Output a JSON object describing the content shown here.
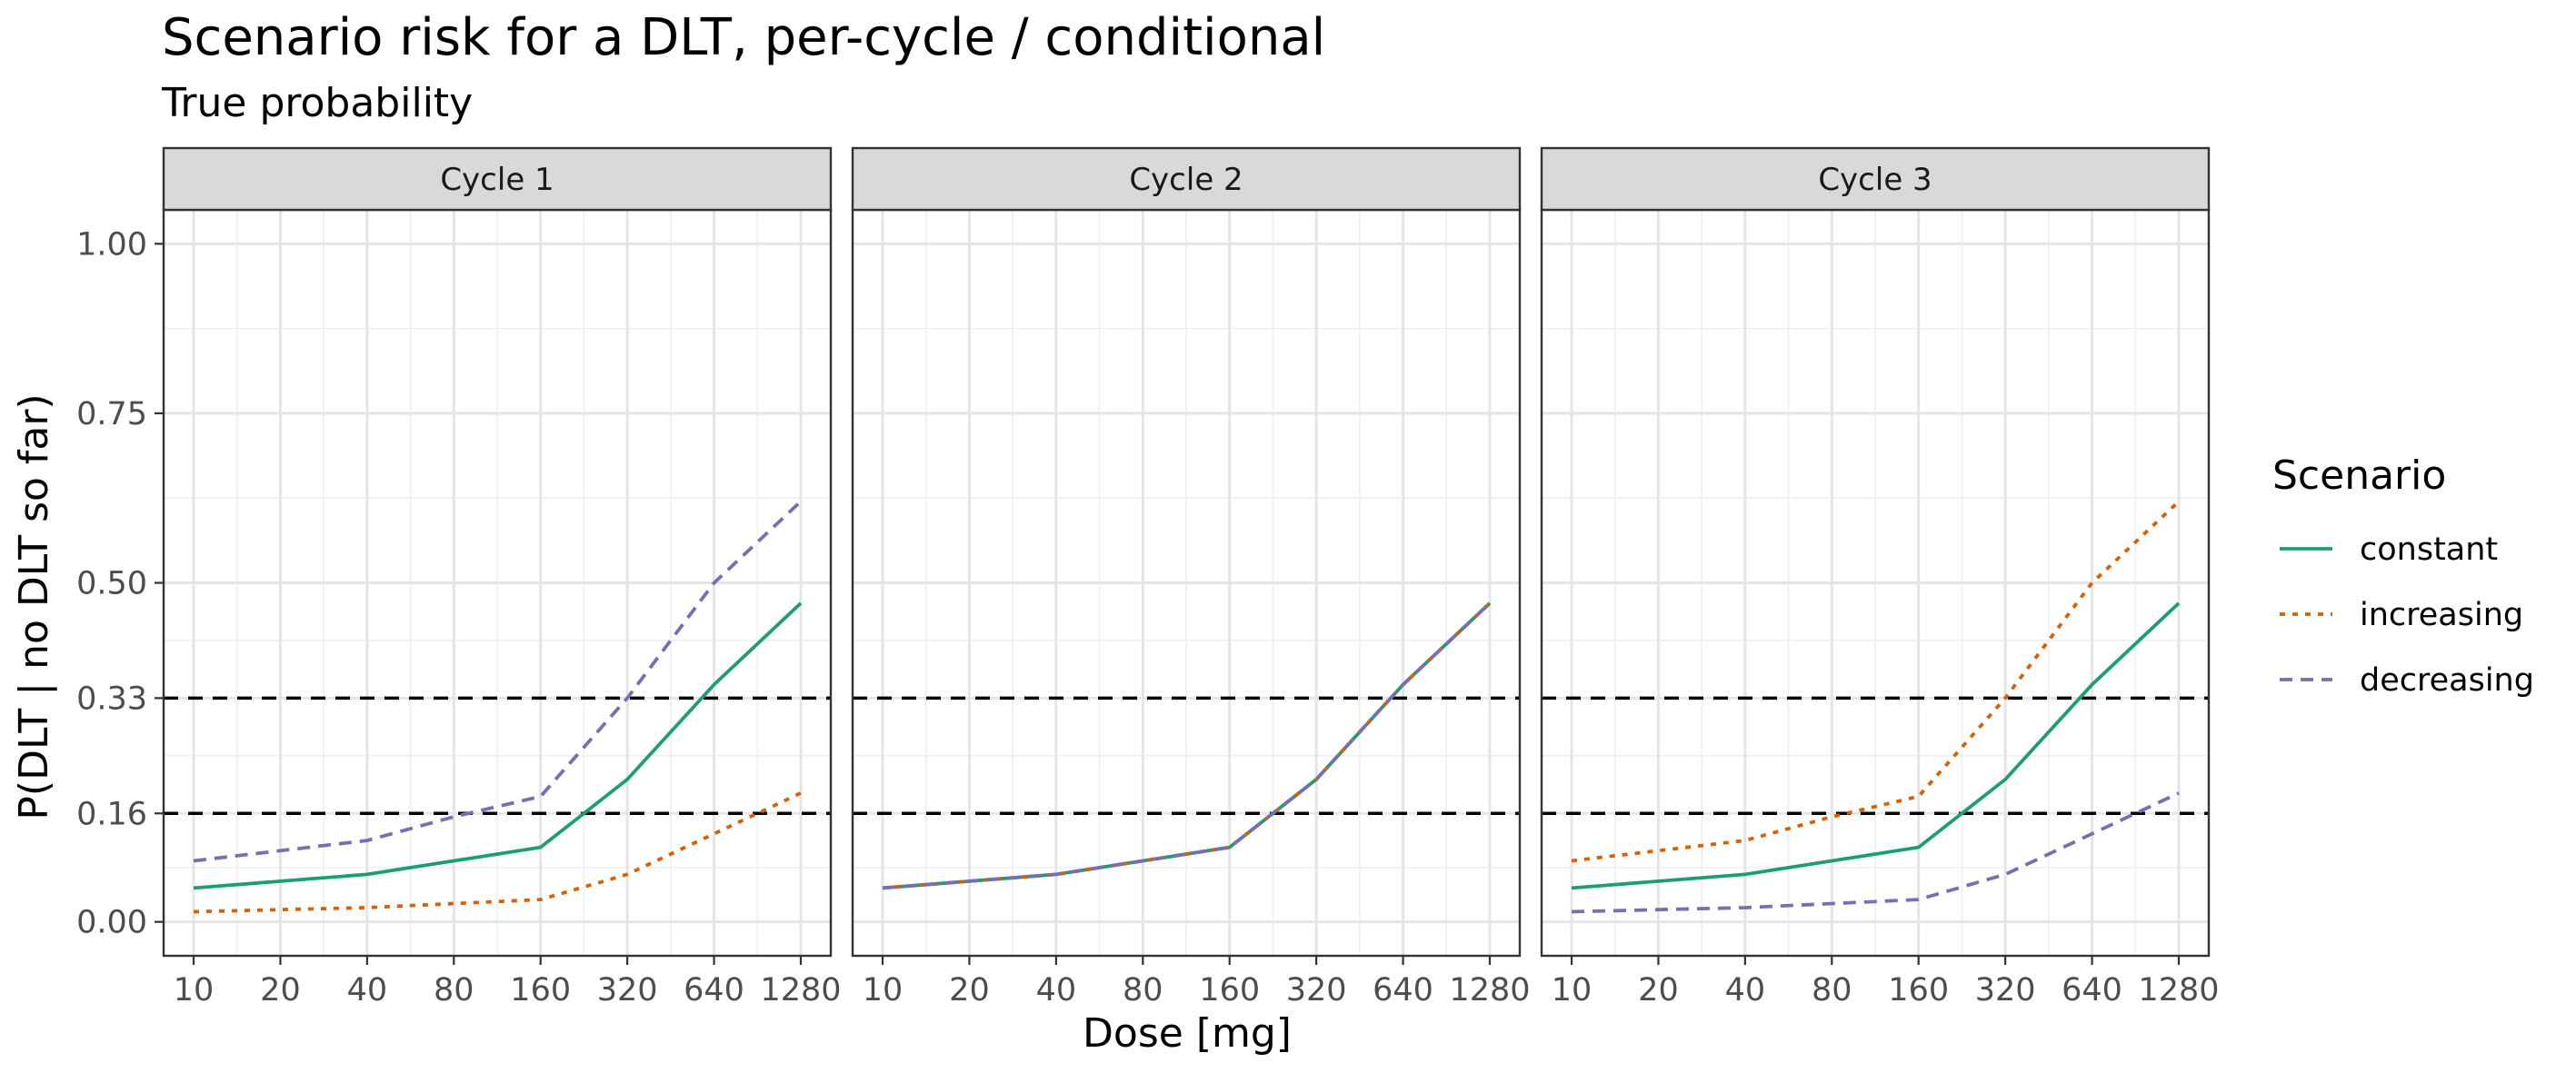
{
  "chart_data": {
    "type": "line",
    "title": "Scenario risk for a DLT, per-cycle / conditional",
    "subtitle": "True probability",
    "xlabel": "Dose [mg]",
    "ylabel": "P(DLT | no DLT so far)",
    "x_scale": "log2",
    "x": [
      10,
      20,
      40,
      80,
      160,
      320,
      640,
      1280
    ],
    "x_tick_labels": [
      "10",
      "20",
      "40",
      "80",
      "160",
      "320",
      "640",
      "1280"
    ],
    "y_ticks": [
      0.0,
      0.16,
      0.33,
      0.5,
      0.75,
      1.0
    ],
    "y_tick_labels": [
      "0.00",
      "0.16",
      "0.33",
      "0.50",
      "0.75",
      "1.00"
    ],
    "ylim": [
      -0.05,
      1.05
    ],
    "reference_lines": [
      0.16,
      0.33
    ],
    "grid": true,
    "legend": {
      "title": "Scenario",
      "position": "right",
      "entries": [
        {
          "label": "constant",
          "color": "#1b9e77",
          "dash": "solid"
        },
        {
          "label": "increasing",
          "color": "#d95f02",
          "dash": "dotted"
        },
        {
          "label": "decreasing",
          "color": "#7570b3",
          "dash": "dashed"
        }
      ]
    },
    "panels": [
      {
        "label": "Cycle 1",
        "series": [
          {
            "name": "constant",
            "values": [
              0.05,
              0.06,
              0.07,
              0.09,
              0.11,
              0.21,
              0.35,
              0.47
            ]
          },
          {
            "name": "increasing",
            "values": [
              0.015,
              0.018,
              0.021,
              0.027,
              0.033,
              0.07,
              0.13,
              0.19
            ]
          },
          {
            "name": "decreasing",
            "values": [
              0.09,
              0.105,
              0.12,
              0.155,
              0.185,
              0.33,
              0.5,
              0.62
            ]
          }
        ]
      },
      {
        "label": "Cycle 2",
        "series": [
          {
            "name": "constant",
            "values": [
              0.05,
              0.06,
              0.07,
              0.09,
              0.11,
              0.21,
              0.35,
              0.47
            ]
          },
          {
            "name": "increasing",
            "values": [
              0.05,
              0.06,
              0.07,
              0.09,
              0.11,
              0.21,
              0.35,
              0.47
            ]
          },
          {
            "name": "decreasing",
            "values": [
              0.05,
              0.06,
              0.07,
              0.09,
              0.11,
              0.21,
              0.35,
              0.47
            ]
          }
        ]
      },
      {
        "label": "Cycle 3",
        "series": [
          {
            "name": "constant",
            "values": [
              0.05,
              0.06,
              0.07,
              0.09,
              0.11,
              0.21,
              0.35,
              0.47
            ]
          },
          {
            "name": "increasing",
            "values": [
              0.09,
              0.105,
              0.12,
              0.155,
              0.185,
              0.33,
              0.5,
              0.62
            ]
          },
          {
            "name": "decreasing",
            "values": [
              0.015,
              0.018,
              0.021,
              0.027,
              0.033,
              0.07,
              0.13,
              0.19
            ]
          }
        ]
      }
    ]
  }
}
